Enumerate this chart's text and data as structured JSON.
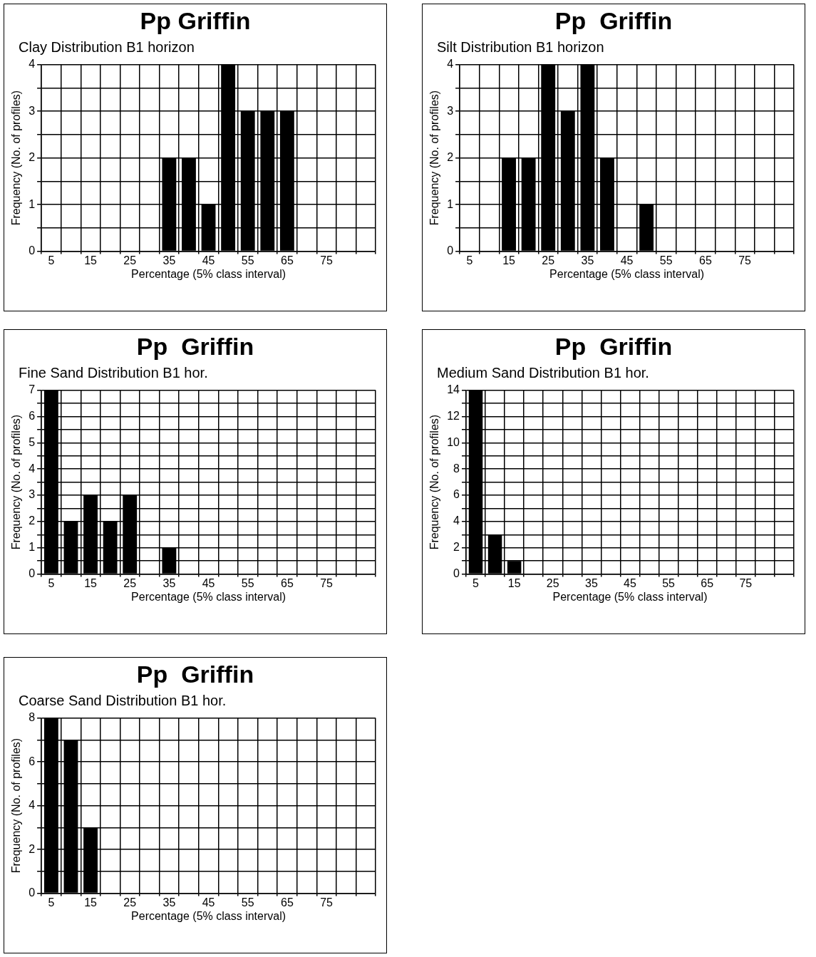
{
  "chart_data": [
    {
      "type": "bar",
      "title": "Pp Griffin",
      "subtitle": "Clay Distribution B1 horizon",
      "xlabel": "Percentage (5% class interval)",
      "ylabel": "Frequency (No. of profiles)",
      "categories": [
        "5",
        null,
        "15",
        null,
        "25",
        null,
        "35",
        null,
        "45",
        null,
        "55",
        null,
        "65",
        null,
        "75",
        null,
        null
      ],
      "values": [
        0,
        0,
        0,
        0,
        0,
        0,
        2,
        2,
        1,
        4,
        3,
        3,
        3,
        0,
        0,
        0,
        0
      ],
      "color": "#000000",
      "ylim": [
        0,
        4
      ],
      "yticks": [
        0,
        {
          "value": 0.5,
          "label": null
        },
        1,
        {
          "value": 1.5,
          "label": null
        },
        2,
        {
          "value": 2.5,
          "label": null
        },
        3,
        {
          "value": 3.5,
          "label": null
        },
        4
      ],
      "grid": true
    },
    {
      "type": "bar",
      "title": "Pp  Griffin",
      "subtitle": "Silt Distribution B1 horizon",
      "xlabel": "Percentage (5% class interval)",
      "ylabel": "Frequency (No. of profiles)",
      "categories": [
        "5",
        null,
        "15",
        null,
        "25",
        null,
        "35",
        null,
        "45",
        null,
        "55",
        null,
        "65",
        null,
        "75",
        null,
        null
      ],
      "values": [
        0,
        0,
        2,
        2,
        4,
        3,
        4,
        2,
        0,
        1,
        0,
        0,
        0,
        0,
        0,
        0,
        0
      ],
      "color": "#000000",
      "ylim": [
        0,
        4
      ],
      "yticks": [
        0,
        {
          "value": 0.5,
          "label": null
        },
        1,
        {
          "value": 1.5,
          "label": null
        },
        2,
        {
          "value": 2.5,
          "label": null
        },
        3,
        {
          "value": 3.5,
          "label": null
        },
        4
      ],
      "grid": true
    },
    {
      "type": "bar",
      "title": "Pp  Griffin",
      "subtitle": "Fine Sand Distribution B1 hor.",
      "xlabel": "Percentage (5% class interval)",
      "ylabel": "Frequency (No. of profiles)",
      "categories": [
        "5",
        null,
        "15",
        null,
        "25",
        null,
        "35",
        null,
        "45",
        null,
        "55",
        null,
        "65",
        null,
        "75",
        null,
        null
      ],
      "values": [
        7,
        2,
        3,
        2,
        3,
        0,
        1,
        0,
        0,
        0,
        0,
        0,
        0,
        0,
        0,
        0,
        0
      ],
      "color": "#000000",
      "ylim": [
        0,
        7
      ],
      "yticks": [
        0,
        {
          "value": 0.5,
          "label": null
        },
        1,
        {
          "value": 1.5,
          "label": null
        },
        2,
        {
          "value": 2.5,
          "label": null
        },
        3,
        {
          "value": 3.5,
          "label": null
        },
        4,
        {
          "value": 4.5,
          "label": null
        },
        5,
        {
          "value": 5.5,
          "label": null
        },
        6,
        {
          "value": 6.5,
          "label": null
        },
        7
      ],
      "grid": true
    },
    {
      "type": "bar",
      "title": "Pp  Griffin",
      "subtitle": "Medium Sand Distribution B1 hor.",
      "xlabel": "Percentage (5% class interval)",
      "ylabel": "Frequency (No. of profiles)",
      "categories": [
        "5",
        null,
        "15",
        null,
        "25",
        null,
        "35",
        null,
        "45",
        null,
        "55",
        null,
        "65",
        null,
        "75",
        null,
        null
      ],
      "values": [
        14,
        3,
        1,
        0,
        0,
        0,
        0,
        0,
        0,
        0,
        0,
        0,
        0,
        0,
        0,
        0,
        0
      ],
      "color": "#000000",
      "ylim": [
        0,
        14
      ],
      "yticks": [
        0,
        {
          "value": 1,
          "label": null
        },
        2,
        {
          "value": 3,
          "label": null
        },
        4,
        {
          "value": 5,
          "label": null
        },
        6,
        {
          "value": 7,
          "label": null
        },
        8,
        {
          "value": 9,
          "label": null
        },
        10,
        {
          "value": 11,
          "label": null
        },
        12,
        {
          "value": 13,
          "label": null
        },
        14
      ],
      "grid": true
    },
    {
      "type": "bar",
      "title": "Pp  Griffin",
      "subtitle": "Coarse Sand Distribution B1 hor.",
      "xlabel": "Percentage (5% class interval)",
      "ylabel": "Frequency (No. of profiles)",
      "categories": [
        "5",
        null,
        "15",
        null,
        "25",
        null,
        "35",
        null,
        "45",
        null,
        "55",
        null,
        "65",
        null,
        "75",
        null,
        null
      ],
      "values": [
        8,
        7,
        3,
        0,
        0,
        0,
        0,
        0,
        0,
        0,
        0,
        0,
        0,
        0,
        0,
        0,
        0
      ],
      "color": "#000000",
      "ylim": [
        0,
        8
      ],
      "yticks": [
        0,
        {
          "value": 1,
          "label": null
        },
        2,
        {
          "value": 3,
          "label": null
        },
        4,
        {
          "value": 5,
          "label": null
        },
        6,
        {
          "value": 7,
          "label": null
        },
        8
      ],
      "grid": true
    }
  ]
}
